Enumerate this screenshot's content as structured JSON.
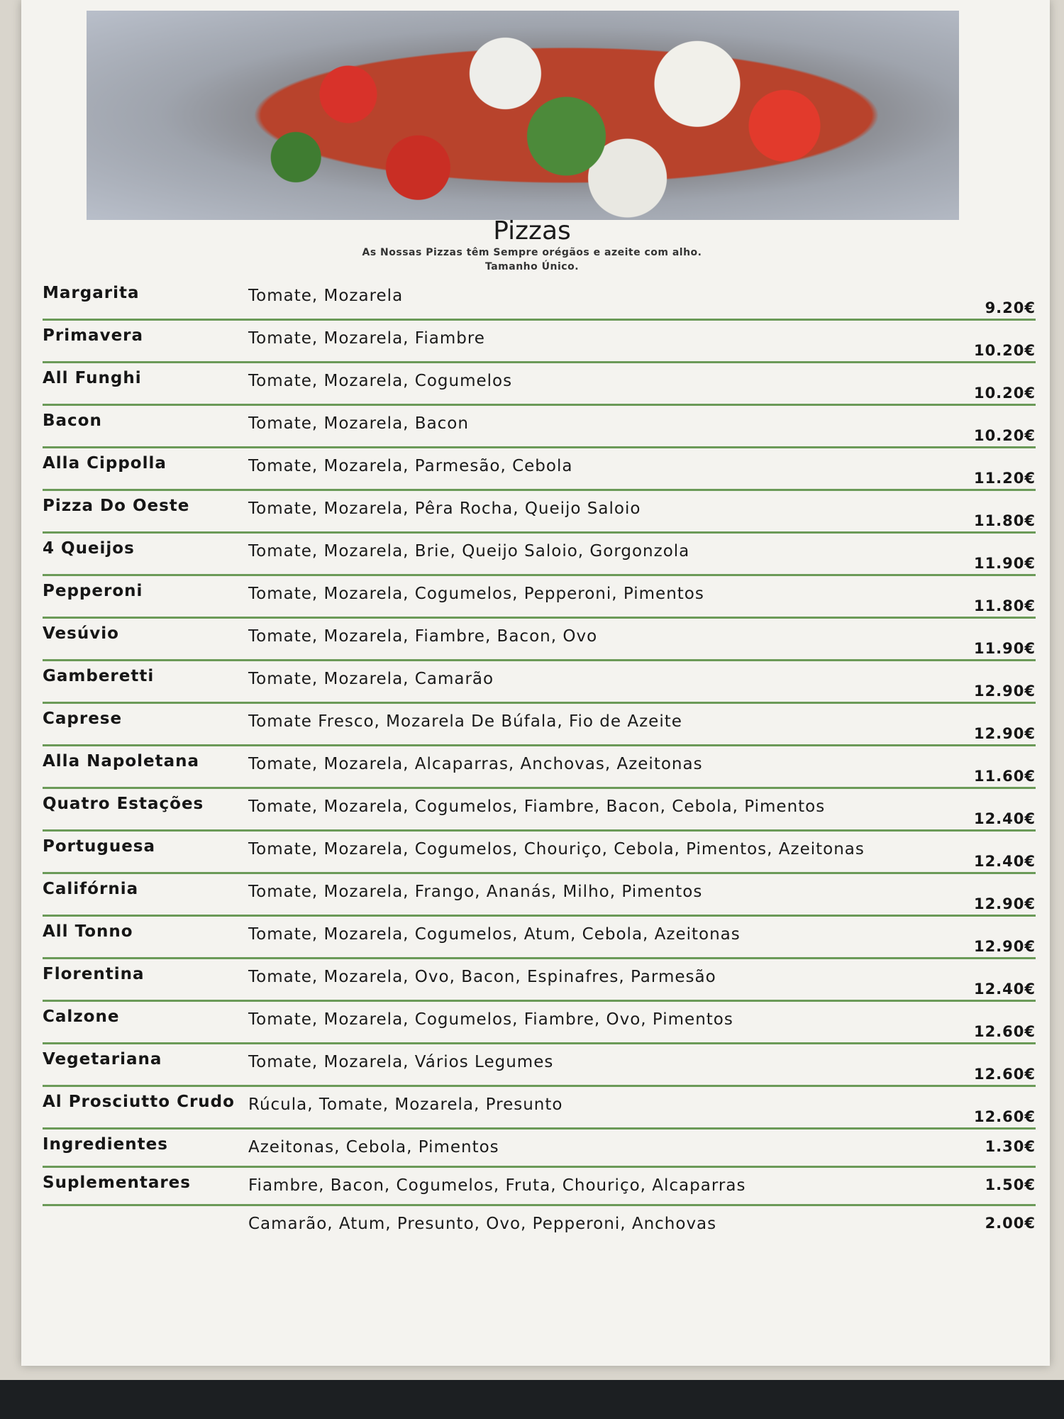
{
  "header": {
    "title": "Pizzas",
    "subtitle": "As Nossas Pizzas têm Sempre orégãos e azeite com alho.",
    "size_note": "Tamanho Único."
  },
  "pizzas": [
    {
      "name": "Margarita",
      "ingredients": "Tomate, Mozarela",
      "price": "9.20€"
    },
    {
      "name": "Primavera",
      "ingredients": "Tomate, Mozarela, Fiambre",
      "price": "10.20€"
    },
    {
      "name": "All Funghi",
      "ingredients": "Tomate, Mozarela, Cogumelos",
      "price": "10.20€"
    },
    {
      "name": "Bacon",
      "ingredients": "Tomate, Mozarela, Bacon",
      "price": "10.20€"
    },
    {
      "name": "Alla Cippolla",
      "ingredients": "Tomate, Mozarela, Parmesão, Cebola",
      "price": "11.20€"
    },
    {
      "name": "Pizza Do Oeste",
      "ingredients": "Tomate, Mozarela, Pêra Rocha, Queijo Saloio",
      "price": "11.80€"
    },
    {
      "name": "4 Queijos",
      "ingredients": "Tomate, Mozarela, Brie, Queijo Saloio, Gorgonzola",
      "price": "11.90€"
    },
    {
      "name": "Pepperoni",
      "ingredients": "Tomate, Mozarela, Cogumelos, Pepperoni, Pimentos",
      "price": "11.80€"
    },
    {
      "name": "Vesúvio",
      "ingredients": "Tomate, Mozarela, Fiambre, Bacon, Ovo",
      "price": "11.90€"
    },
    {
      "name": "Gamberetti",
      "ingredients": "Tomate, Mozarela, Camarão",
      "price": "12.90€"
    },
    {
      "name": "Caprese",
      "ingredients": "Tomate Fresco, Mozarela De Búfala, Fio de Azeite",
      "price": "12.90€"
    },
    {
      "name": "Alla Napoletana",
      "ingredients": "Tomate, Mozarela, Alcaparras, Anchovas, Azeitonas",
      "price": "11.60€"
    },
    {
      "name": "Quatro Estações",
      "ingredients": "Tomate, Mozarela, Cogumelos, Fiambre, Bacon, Cebola, Pimentos",
      "price": "12.40€"
    },
    {
      "name": "Portuguesa",
      "ingredients": "Tomate, Mozarela, Cogumelos, Chouriço, Cebola, Pimentos, Azeitonas",
      "price": "12.40€"
    },
    {
      "name": "Califórnia",
      "ingredients": "Tomate, Mozarela, Frango, Ananás, Milho, Pimentos",
      "price": "12.90€"
    },
    {
      "name": "All Tonno",
      "ingredients": "Tomate, Mozarela, Cogumelos, Atum, Cebola, Azeitonas",
      "price": "12.90€"
    },
    {
      "name": "Florentina",
      "ingredients": "Tomate, Mozarela, Ovo, Bacon, Espinafres, Parmesão",
      "price": "12.40€"
    },
    {
      "name": "Calzone",
      "ingredients": "Tomate, Mozarela, Cogumelos, Fiambre, Ovo, Pimentos",
      "price": "12.60€"
    },
    {
      "name": "Vegetariana",
      "ingredients": "Tomate, Mozarela, Vários Legumes",
      "price": "12.60€"
    },
    {
      "name": "Al Prosciutto Crudo",
      "ingredients": "Rúcula, Tomate, Mozarela, Presunto",
      "price": "12.60€"
    }
  ],
  "extras": [
    {
      "name": "Ingredientes",
      "ingredients": "Azeitonas, Cebola, Pimentos",
      "price": "1.30€"
    },
    {
      "name": "Suplementares",
      "ingredients": "Fiambre, Bacon, Cogumelos, Fruta, Chouriço, Alcaparras",
      "price": "1.50€"
    },
    {
      "name": "",
      "ingredients": "Camarão, Atum, Presunto, Ovo, Pepperoni, Anchovas",
      "price": "2.00€"
    }
  ],
  "colors": {
    "divider": "#6b9a58",
    "paper": "#f4f3ef"
  }
}
